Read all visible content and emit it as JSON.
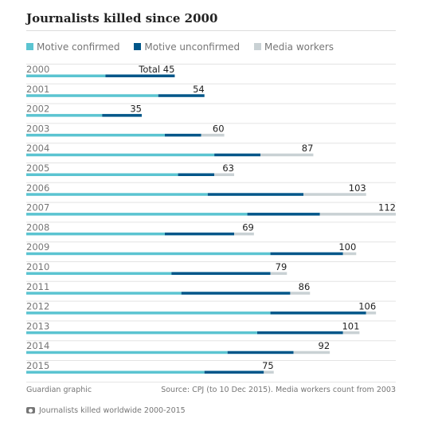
{
  "title": "Journalists killed since 2000",
  "legend": [
    {
      "label": "Motive confirmed",
      "color": "#5bc4d1"
    },
    {
      "label": "Motive unconfirmed",
      "color": "#005689"
    },
    {
      "label": "Media workers",
      "color": "#c9d1d4"
    }
  ],
  "footer": {
    "left": "Guardian graphic",
    "right": "Source: CPJ (to 10 Dec 2015). Media workers count from 2003"
  },
  "caption": "Journalists killed worldwide 2000-2015",
  "chart_data": {
    "type": "bar",
    "orientation": "horizontal",
    "stacked": true,
    "categories": [
      "2000",
      "2001",
      "2002",
      "2003",
      "2004",
      "2005",
      "2006",
      "2007",
      "2008",
      "2009",
      "2010",
      "2011",
      "2012",
      "2013",
      "2014",
      "2015"
    ],
    "series": [
      {
        "name": "Motive confirmed",
        "values": [
          24,
          40,
          23,
          42,
          57,
          46,
          55,
          67,
          42,
          74,
          44,
          47,
          74,
          70,
          61,
          54
        ]
      },
      {
        "name": "Motive unconfirmed",
        "values": [
          21,
          14,
          12,
          11,
          14,
          11,
          29,
          22,
          21,
          22,
          30,
          33,
          29,
          26,
          20,
          18
        ]
      },
      {
        "name": "Media workers",
        "values": [
          0,
          0,
          0,
          7,
          16,
          6,
          19,
          23,
          6,
          4,
          5,
          6,
          3,
          5,
          11,
          3
        ]
      }
    ],
    "totals": [
      45,
      54,
      35,
      60,
      87,
      63,
      103,
      112,
      69,
      100,
      79,
      86,
      106,
      101,
      92,
      75
    ],
    "total_prefix": "Total",
    "xlim": [
      0,
      112
    ]
  }
}
